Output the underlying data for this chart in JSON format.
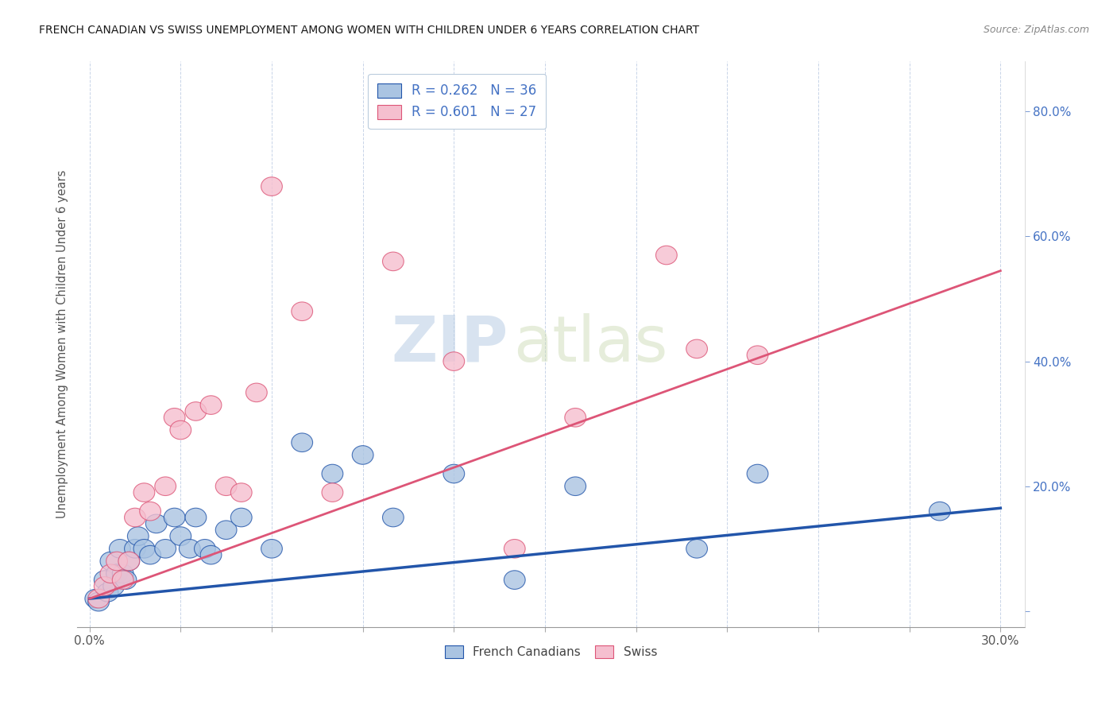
{
  "title": "FRENCH CANADIAN VS SWISS UNEMPLOYMENT AMONG WOMEN WITH CHILDREN UNDER 6 YEARS CORRELATION CHART",
  "source": "Source: ZipAtlas.com",
  "ylabel": "Unemployment Among Women with Children Under 6 years",
  "xlim": [
    -0.004,
    0.308
  ],
  "ylim": [
    -0.025,
    0.88
  ],
  "xticks": [
    0.0,
    0.03,
    0.06,
    0.09,
    0.12,
    0.15,
    0.18,
    0.21,
    0.24,
    0.27,
    0.3
  ],
  "xtick_labels": [
    "0.0%",
    "",
    "",
    "",
    "",
    "",
    "",
    "",
    "",
    "",
    "30.0%"
  ],
  "right_yticks": [
    0.0,
    0.2,
    0.4,
    0.6,
    0.8
  ],
  "right_ytick_labels": [
    "",
    "20.0%",
    "40.0%",
    "60.0%",
    "80.0%"
  ],
  "french_R": 0.262,
  "french_N": 36,
  "swiss_R": 0.601,
  "swiss_N": 27,
  "french_color": "#aac4e2",
  "swiss_color": "#f5bfcf",
  "french_line_color": "#2255aa",
  "swiss_line_color": "#dd5577",
  "legend_text_color": "#4472c4",
  "background_color": "#ffffff",
  "grid_color": "#c8d4e8",
  "title_color": "#1a1a1a",
  "watermark_zip": "ZIP",
  "watermark_atlas": "atlas",
  "french_x": [
    0.002,
    0.003,
    0.005,
    0.006,
    0.007,
    0.008,
    0.009,
    0.01,
    0.011,
    0.012,
    0.013,
    0.015,
    0.016,
    0.018,
    0.02,
    0.022,
    0.025,
    0.028,
    0.03,
    0.033,
    0.035,
    0.038,
    0.04,
    0.045,
    0.05,
    0.06,
    0.07,
    0.08,
    0.09,
    0.1,
    0.12,
    0.14,
    0.16,
    0.2,
    0.22,
    0.28
  ],
  "french_y": [
    0.02,
    0.015,
    0.05,
    0.03,
    0.08,
    0.04,
    0.06,
    0.1,
    0.06,
    0.05,
    0.08,
    0.1,
    0.12,
    0.1,
    0.09,
    0.14,
    0.1,
    0.15,
    0.12,
    0.1,
    0.15,
    0.1,
    0.09,
    0.13,
    0.15,
    0.1,
    0.27,
    0.22,
    0.25,
    0.15,
    0.22,
    0.05,
    0.2,
    0.1,
    0.22,
    0.16
  ],
  "swiss_x": [
    0.003,
    0.005,
    0.007,
    0.009,
    0.011,
    0.013,
    0.015,
    0.018,
    0.02,
    0.025,
    0.028,
    0.03,
    0.035,
    0.04,
    0.045,
    0.05,
    0.055,
    0.06,
    0.07,
    0.08,
    0.1,
    0.12,
    0.14,
    0.16,
    0.19,
    0.2,
    0.22
  ],
  "swiss_y": [
    0.02,
    0.04,
    0.06,
    0.08,
    0.05,
    0.08,
    0.15,
    0.19,
    0.16,
    0.2,
    0.31,
    0.29,
    0.32,
    0.33,
    0.2,
    0.19,
    0.35,
    0.68,
    0.48,
    0.19,
    0.56,
    0.4,
    0.1,
    0.31,
    0.57,
    0.42,
    0.41
  ],
  "french_trendline": [
    0.0,
    0.3,
    0.02,
    0.165
  ],
  "swiss_trendline": [
    0.0,
    0.3,
    0.02,
    0.545
  ]
}
